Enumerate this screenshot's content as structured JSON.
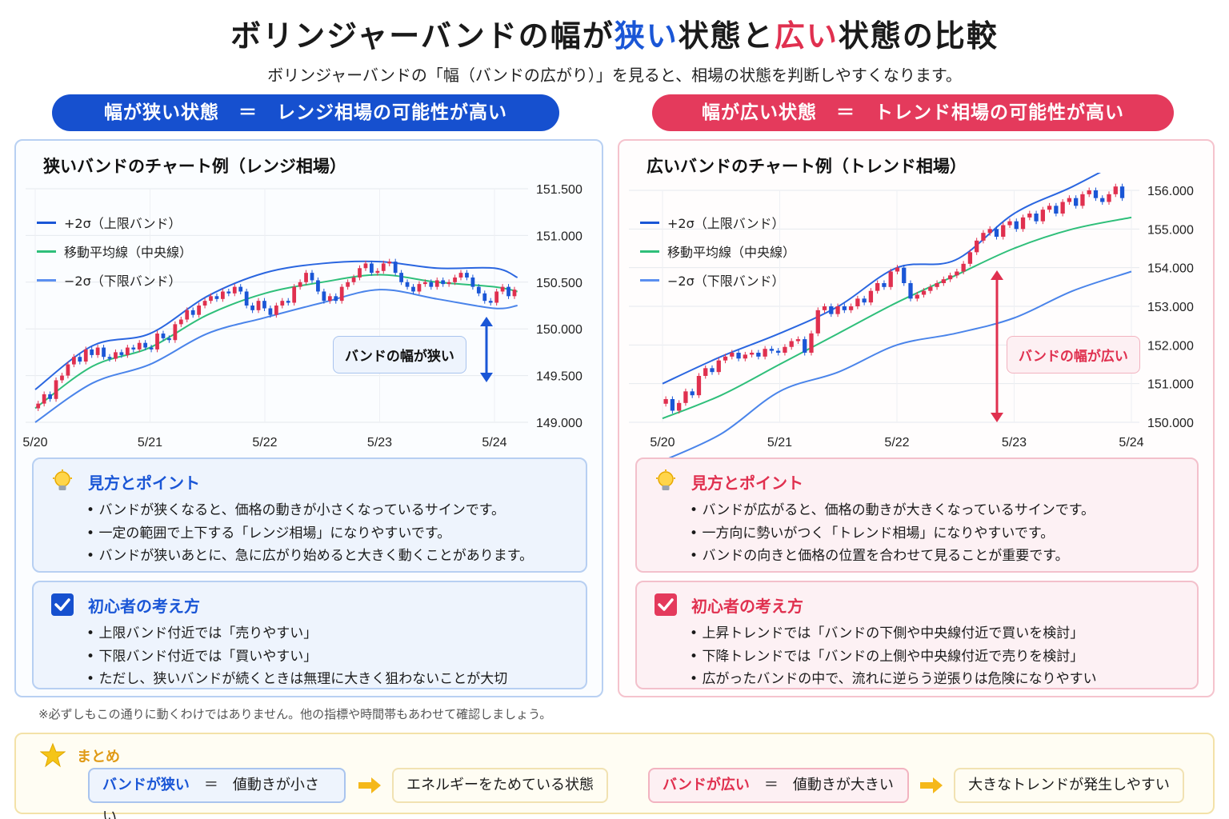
{
  "title": {
    "part1": "ボリンジャーバンドの幅が",
    "narrow": "狭い",
    "part2": "状態と",
    "wide": "広い",
    "part3": "状態の比較"
  },
  "subtitle": "ボリンジャーバンドの「幅（バンドの広がり）」を見ると、相場の状態を判断しやすくなります。",
  "left": {
    "pill": "幅が狭い状態　＝　レンジ相場の可能性が高い",
    "chart_title": "狭いバンドのチャート例（レンジ相場）",
    "callout": "バンドの幅が狭い",
    "tips": {
      "heading": "見方とポイント",
      "items": [
        "バンドが狭くなると、価格の動きが小さくなっているサインです。",
        "一定の範囲で上下する「レンジ相場」になりやすいです。",
        "バンドが狭いあとに、急に広がり始めると大きく動くことがあります。"
      ]
    },
    "think": {
      "heading": "初心者の考え方",
      "items": [
        "上限バンド付近では「売りやすい」",
        "下限バンド付近では「買いやすい」",
        "ただし、狭いバンドが続くときは無理に大きく狙わないことが大切"
      ]
    }
  },
  "right": {
    "pill": "幅が広い状態　＝　トレンド相場の可能性が高い",
    "chart_title": "広いバンドのチャート例（トレンド相場）",
    "callout": "バンドの幅が広い",
    "tips": {
      "heading": "見方とポイント",
      "items": [
        "バンドが広がると、価格の動きが大きくなっているサインです。",
        "一方向に勢いがつく「トレンド相場」になりやすいです。",
        "バンドの向きと価格の位置を合わせて見ることが重要です。"
      ]
    },
    "think": {
      "heading": "初心者の考え方",
      "items": [
        "上昇トレンドでは「バンドの下側や中央線付近で買いを検討」",
        "下降トレンドでは「バンドの上側や中央線付近で売りを検討」",
        "広がったバンドの中で、流れに逆らう逆張りは危険になりやすい"
      ]
    }
  },
  "legend": [
    "+2σ（上限バンド）",
    "移動平均線（中央線）",
    "−2σ（下限バンド）"
  ],
  "note": "※必ずしもこの通りに動くわけではありません。他の指標や時間帯もあわせて確認しましょう。",
  "summary": {
    "heading": "まとめ",
    "narrow_key": "バンドが狭い",
    "narrow_val": "値動きが小さい",
    "narrow_result": "エネルギーをためている状態",
    "wide_key": "バンドが広い",
    "wide_val": "値動きが大きい",
    "wide_result": "大きなトレンドが発生しやすい",
    "eq": "＝"
  },
  "colors": {
    "blue": "#1a56d6",
    "red": "#e0304f",
    "ma": "#2fbf7a",
    "band": "#3a78e0",
    "candle_up": "#e0304f",
    "candle_down": "#1a56d6"
  },
  "chart_data": [
    {
      "type": "line",
      "title": "狭いバンドのチャート例（レンジ相場）",
      "categories": [
        "5/20",
        "5/21",
        "5/22",
        "5/23",
        "5/24"
      ],
      "yticks": [
        "151.500",
        "151.000",
        "150.500",
        "150.000",
        "149.500",
        "149.000"
      ],
      "ylim": [
        149.0,
        151.5
      ],
      "grid": true,
      "legend_position": "top-left",
      "series": [
        {
          "name": "+2σ（上限バンド）",
          "x": [
            0,
            0.5,
            1,
            1.5,
            2,
            2.5,
            3,
            3.5,
            4,
            4.2
          ],
          "values": [
            149.35,
            149.82,
            149.95,
            150.35,
            150.6,
            150.7,
            150.72,
            150.65,
            150.65,
            150.55
          ]
        },
        {
          "name": "移動平均線（中央線）",
          "x": [
            0,
            0.5,
            1,
            1.5,
            2,
            2.5,
            3,
            3.5,
            4,
            4.2
          ],
          "values": [
            149.15,
            149.6,
            149.8,
            150.15,
            150.38,
            150.5,
            150.58,
            150.5,
            150.45,
            150.4
          ]
        },
        {
          "name": "−2σ（下限バンド）",
          "x": [
            0,
            0.5,
            1,
            1.5,
            2,
            2.5,
            3,
            3.5,
            4,
            4.2
          ],
          "values": [
            149.0,
            149.42,
            149.62,
            149.95,
            150.12,
            150.28,
            150.42,
            150.32,
            150.22,
            150.25
          ]
        }
      ],
      "candles": {
        "x_start": 0,
        "x_end": 4.2,
        "close": [
          149.2,
          149.3,
          149.25,
          149.45,
          149.5,
          149.62,
          149.7,
          149.65,
          149.78,
          149.72,
          149.8,
          149.7,
          149.68,
          149.75,
          149.72,
          149.8,
          149.78,
          149.85,
          149.8,
          149.78,
          149.95,
          149.9,
          149.88,
          150.05,
          150.1,
          150.2,
          150.15,
          150.25,
          150.3,
          150.35,
          150.32,
          150.4,
          150.38,
          150.45,
          150.4,
          150.25,
          150.2,
          150.3,
          150.22,
          150.15,
          150.25,
          150.3,
          150.28,
          150.45,
          150.5,
          150.6,
          150.52,
          150.4,
          150.3,
          150.35,
          150.3,
          150.45,
          150.5,
          150.55,
          150.65,
          150.7,
          150.6,
          150.62,
          150.7,
          150.72,
          150.6,
          150.5,
          150.45,
          150.4,
          150.48,
          150.5,
          150.45,
          150.52,
          150.48,
          150.5,
          150.55,
          150.6,
          150.55,
          150.45,
          150.38,
          150.3,
          150.28,
          150.4,
          150.45,
          150.35,
          150.42
        ]
      }
    },
    {
      "type": "line",
      "title": "広いバンドのチャート例（トレンド相場）",
      "categories": [
        "5/20",
        "5/21",
        "5/22",
        "5/23",
        "5/24"
      ],
      "yticks": [
        "156.000",
        "155.000",
        "154.000",
        "153.000",
        "152.000",
        "151.000",
        "150.000"
      ],
      "ylim": [
        150.0,
        156.0
      ],
      "grid": true,
      "legend_position": "top-left",
      "series": [
        {
          "name": "+2σ（上限バンド）",
          "x": [
            0,
            0.5,
            1,
            1.5,
            2,
            2.5,
            3,
            3.5,
            4
          ],
          "values": [
            151.0,
            151.7,
            152.3,
            153.0,
            154.0,
            154.2,
            155.4,
            156.1,
            156.9
          ]
        },
        {
          "name": "移動平均線（中央線）",
          "x": [
            0,
            0.5,
            1,
            1.5,
            2,
            2.5,
            3,
            3.5,
            4
          ],
          "values": [
            150.1,
            150.7,
            151.5,
            152.3,
            153.1,
            153.8,
            154.5,
            155.0,
            155.3
          ]
        },
        {
          "name": "−2σ（下限バンド）",
          "x": [
            0,
            0.5,
            1,
            1.5,
            2,
            2.5,
            3,
            3.5,
            4
          ],
          "values": [
            149.0,
            149.7,
            150.8,
            151.3,
            152.0,
            152.3,
            152.7,
            153.4,
            153.9
          ]
        }
      ],
      "candles": {
        "x_start": 0,
        "x_end": 3.95,
        "close": [
          150.6,
          150.3,
          150.5,
          150.8,
          150.7,
          151.2,
          151.4,
          151.3,
          151.6,
          151.7,
          151.8,
          151.65,
          151.75,
          151.8,
          151.7,
          151.9,
          151.85,
          151.8,
          151.95,
          152.1,
          152.15,
          151.8,
          152.3,
          152.9,
          153.0,
          152.8,
          153.0,
          152.9,
          153.0,
          153.2,
          153.1,
          153.4,
          153.6,
          153.5,
          153.9,
          154.0,
          153.6,
          153.2,
          153.3,
          153.4,
          153.5,
          153.6,
          153.7,
          153.8,
          153.9,
          154.1,
          154.4,
          154.7,
          154.9,
          155.0,
          154.8,
          155.1,
          155.2,
          155.0,
          155.3,
          155.4,
          155.2,
          155.5,
          155.6,
          155.4,
          155.7,
          155.8,
          155.6,
          155.9,
          156.0,
          155.8,
          155.7,
          155.9,
          156.1,
          155.8
        ]
      }
    }
  ]
}
